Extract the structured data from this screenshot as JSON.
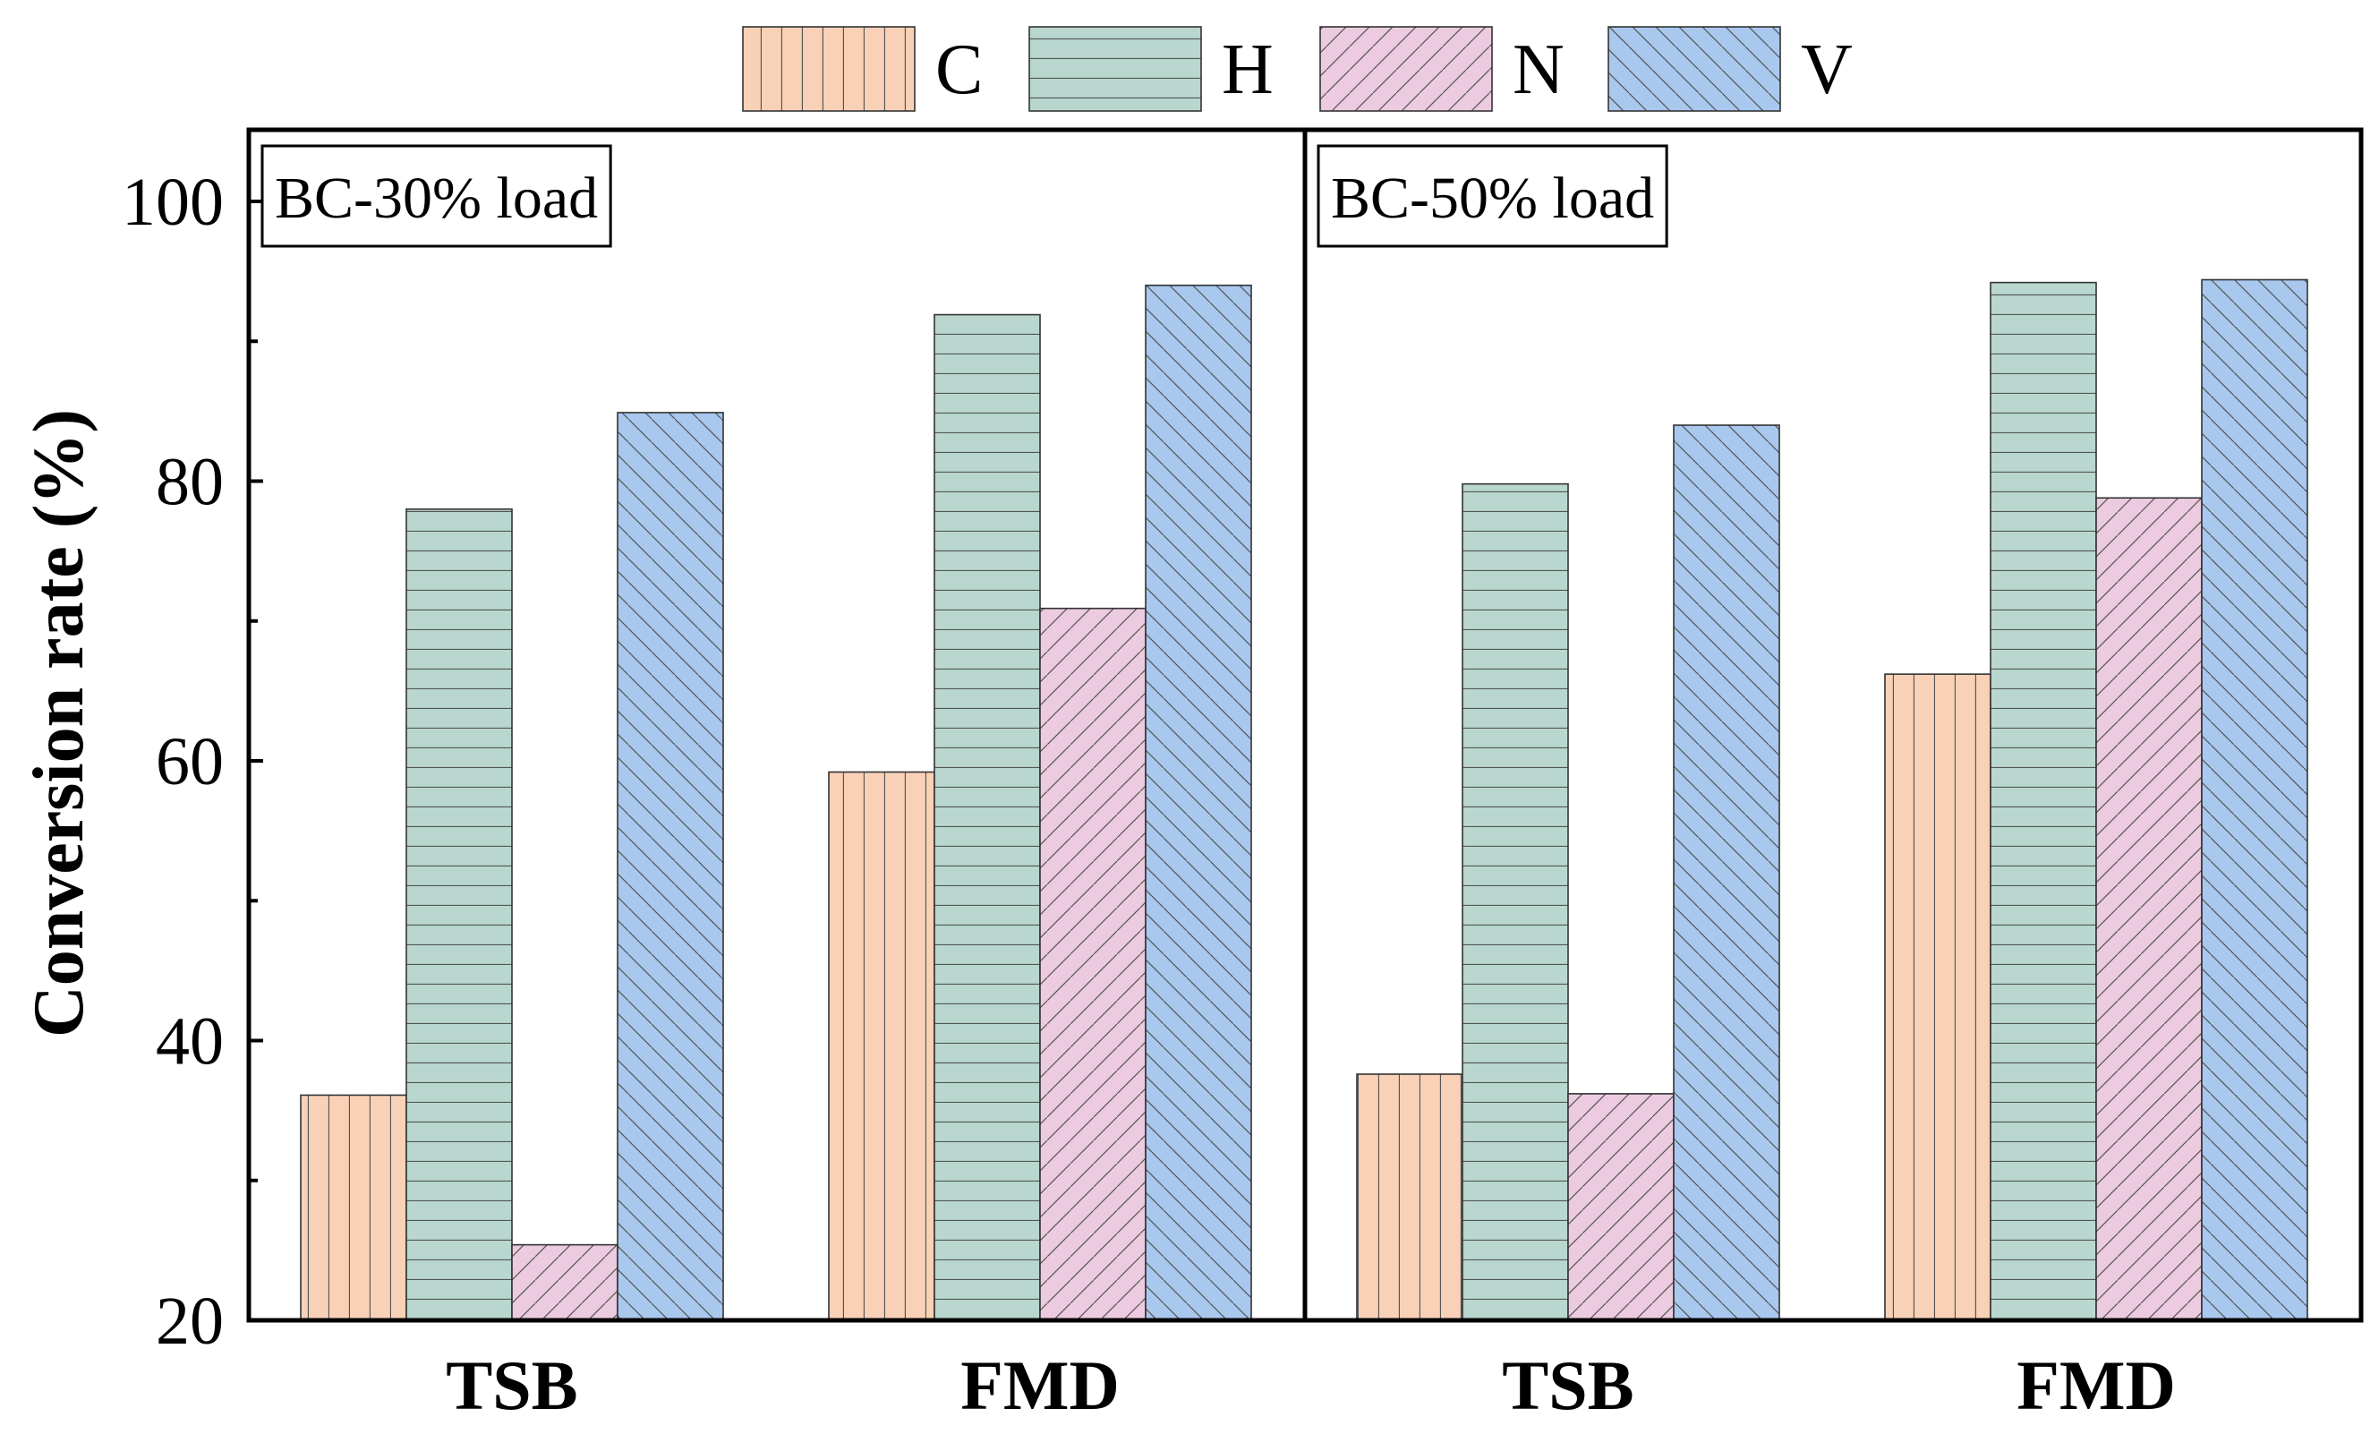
{
  "chart_data": {
    "type": "bar",
    "ylabel": "Conversion rate (%)",
    "ylim": [
      20,
      105
    ],
    "yticks": [
      20,
      40,
      60,
      80,
      100
    ],
    "legend": [
      {
        "key": "C",
        "label": "C",
        "color": "#f9d1b7",
        "pattern": "vertical"
      },
      {
        "key": "H",
        "label": "H",
        "color": "#b9d7cf",
        "pattern": "horizontal"
      },
      {
        "key": "N",
        "label": "N",
        "color": "#eccbe0",
        "pattern": "forward-diagonal"
      },
      {
        "key": "V",
        "label": "V",
        "color": "#a8c8ee",
        "pattern": "back-diagonal"
      }
    ],
    "panels": [
      {
        "label": "BC-30% load",
        "categories": [
          "TSB",
          "FMD"
        ],
        "series": [
          {
            "name": "C",
            "values": [
              36.1,
              59.2
            ]
          },
          {
            "name": "H",
            "values": [
              78.0,
              91.9
            ]
          },
          {
            "name": "N",
            "values": [
              25.4,
              70.9
            ]
          },
          {
            "name": "V",
            "values": [
              84.9,
              94.0
            ]
          }
        ]
      },
      {
        "label": "BC-50% load",
        "categories": [
          "TSB",
          "FMD"
        ],
        "series": [
          {
            "name": "C",
            "values": [
              37.6,
              66.2
            ]
          },
          {
            "name": "H",
            "values": [
              79.8,
              94.2
            ]
          },
          {
            "name": "N",
            "values": [
              36.2,
              78.8
            ]
          },
          {
            "name": "V",
            "values": [
              84.0,
              94.4
            ]
          }
        ]
      }
    ]
  }
}
